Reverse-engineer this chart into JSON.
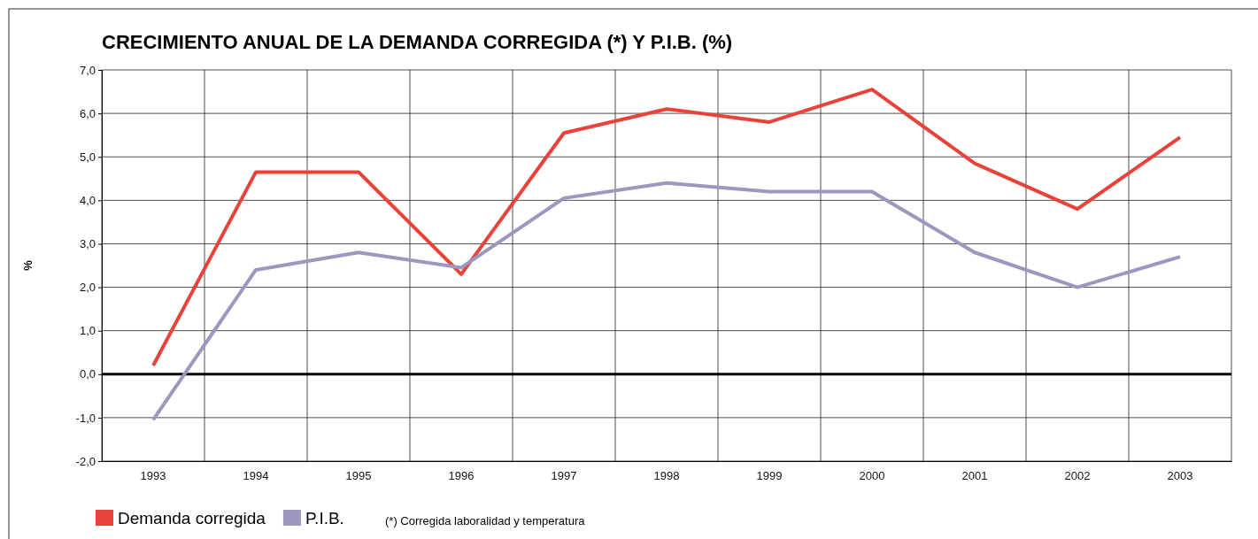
{
  "chart_data": {
    "type": "line",
    "title": "CRECIMIENTO ANUAL DE LA DEMANDA CORREGIDA (*) Y P.I.B. (%)",
    "ylabel": "%",
    "categories": [
      "1993",
      "1994",
      "1995",
      "1996",
      "1997",
      "1998",
      "1999",
      "2000",
      "2001",
      "2002",
      "2003"
    ],
    "series": [
      {
        "name": "Demanda corregida",
        "color": "#e8423a",
        "values": [
          0.2,
          4.65,
          4.65,
          2.3,
          5.55,
          6.1,
          5.8,
          6.55,
          4.85,
          3.8,
          5.45
        ]
      },
      {
        "name": "P.I.B.",
        "color": "#9c97bf",
        "values": [
          -1.05,
          2.4,
          2.8,
          2.45,
          4.05,
          4.4,
          4.2,
          4.2,
          2.8,
          2.0,
          2.7
        ]
      }
    ],
    "ylim": [
      -2,
      7
    ],
    "yticks": [
      {
        "value": -2,
        "label": "-2,0"
      },
      {
        "value": -1,
        "label": "-1,0"
      },
      {
        "value": 0,
        "label": "0,0"
      },
      {
        "value": 1,
        "label": "1,0"
      },
      {
        "value": 2,
        "label": "2,0"
      },
      {
        "value": 3,
        "label": "3,0"
      },
      {
        "value": 4,
        "label": "4,0"
      },
      {
        "value": 5,
        "label": "5,0"
      },
      {
        "value": 6,
        "label": "6,0"
      },
      {
        "value": 7,
        "label": "7,0"
      }
    ],
    "grid": true,
    "legend": "bottom left",
    "marker": "none",
    "line_style": "solid",
    "ref_lines": [
      {
        "axis": "y",
        "value": 0,
        "color": "#000000"
      }
    ],
    "annotations": [
      "(*)  Corregida laboralidad y temperatura"
    ]
  }
}
